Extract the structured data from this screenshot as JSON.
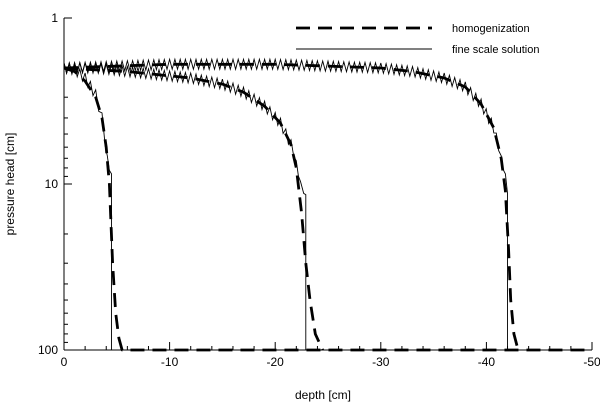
{
  "chart_data": {
    "type": "line",
    "title": "",
    "xlabel": "depth [cm]",
    "ylabel": "pressure head [cm]",
    "xlim": [
      0,
      -50
    ],
    "ylim": [
      1,
      100
    ],
    "y_scale": "log",
    "y_direction": "downward",
    "grid": false,
    "legend_position": "top-right",
    "x_ticks": [
      0,
      -10,
      -20,
      -30,
      -40,
      -50
    ],
    "x_tick_labels": [
      "0",
      "-10",
      "-20",
      "-30",
      "-40",
      "-50"
    ],
    "y_ticks": [
      1,
      10,
      100
    ],
    "y_tick_labels": [
      "1",
      "10",
      "100"
    ],
    "series": [
      {
        "name": "homogenization",
        "style": "dashed-thick",
        "color": "#000000",
        "curves": [
          {
            "x": [
              0,
              -1,
              -2,
              -3,
              -3.6,
              -4,
              -4.3,
              -4.6,
              -4.9,
              -5.2,
              -5.5,
              -6,
              -10,
              -20,
              -30,
              -40,
              -50
            ],
            "y": [
              2.0,
              2.1,
              2.4,
              3.0,
              4.0,
              6.0,
              10.0,
              30.0,
              60.0,
              85.0,
              100,
              100,
              100,
              100,
              100,
              100,
              100
            ]
          },
          {
            "x": [
              0,
              -3,
              -6,
              -9,
              -12,
              -15,
              -17,
              -19,
              -20.5,
              -21.5,
              -22,
              -22.5,
              -22.9,
              -23.3,
              -23.8,
              -24.5
            ],
            "y": [
              2.0,
              2.05,
              2.1,
              2.2,
              2.3,
              2.5,
              2.8,
              3.4,
              4.3,
              5.8,
              8.0,
              15.0,
              30.0,
              50.0,
              80.0,
              100
            ]
          },
          {
            "x": [
              0,
              -5,
              -10,
              -15,
              -20,
              -25,
              -30,
              -33,
              -36,
              -38,
              -39.5,
              -40.7,
              -41.4,
              -41.8,
              -42.1,
              -42.3,
              -42.6,
              -43
            ],
            "y": [
              2.0,
              1.95,
              1.9,
              1.9,
              1.9,
              1.95,
              2.0,
              2.1,
              2.3,
              2.6,
              3.3,
              4.6,
              7.0,
              11.0,
              25.0,
              50.0,
              80.0,
              100
            ]
          }
        ]
      },
      {
        "name": "fine scale solution",
        "style": "solid-thin",
        "color": "#000000",
        "curves": [
          {
            "x": [
              0,
              -1,
              -2,
              -3,
              -3.6,
              -3.9,
              -4.1,
              -4.3,
              -4.5,
              -4.5,
              -10,
              -20,
              -30,
              -40,
              -50
            ],
            "y": [
              2.0,
              2.05,
              2.3,
              2.9,
              4.0,
              5.5,
              7.0,
              8.0,
              9.0,
              100,
              100,
              100,
              100,
              100,
              100
            ]
          },
          {
            "x": [
              0,
              -3,
              -6,
              -9,
              -12,
              -15,
              -17,
              -19,
              -20.5,
              -21.5,
              -22,
              -22.4,
              -22.7,
              -22.9,
              -22.9,
              -23.2
            ],
            "y": [
              2.0,
              2.0,
              2.1,
              2.2,
              2.3,
              2.5,
              2.8,
              3.4,
              4.3,
              5.8,
              7.5,
              10.0,
              11.0,
              12.0,
              100,
              100
            ]
          },
          {
            "x": [
              0,
              -5,
              -10,
              -15,
              -20,
              -25,
              -30,
              -33,
              -36,
              -38,
              -39.5,
              -40.7,
              -41.4,
              -41.8,
              -42,
              -42,
              -42.3
            ],
            "y": [
              2.0,
              1.95,
              1.9,
              1.9,
              1.9,
              1.95,
              2.0,
              2.1,
              2.3,
              2.6,
              3.3,
              4.6,
              7.0,
              9.0,
              11.0,
              100,
              100
            ]
          }
        ]
      }
    ]
  }
}
